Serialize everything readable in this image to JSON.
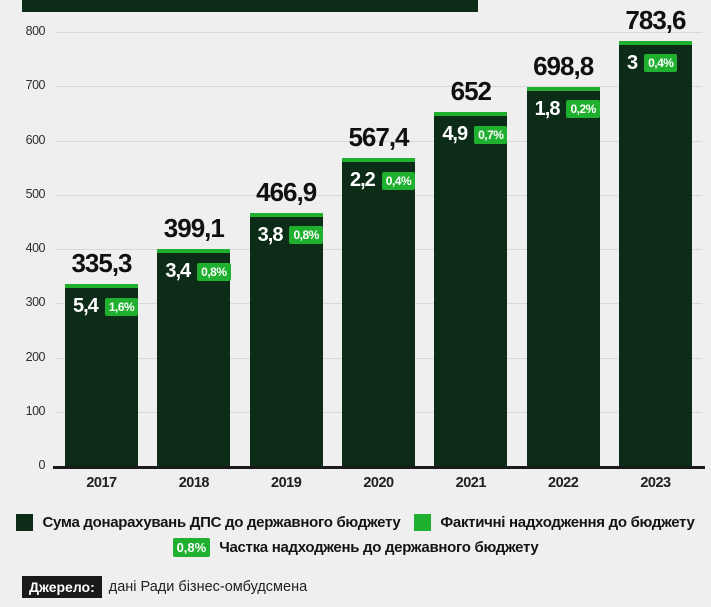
{
  "colors": {
    "background": "#efeff0",
    "dark_green": "#0c2c18",
    "bright_green": "#1eb02e",
    "gridline": "#d8d8d8",
    "axis": "#1a1a1a",
    "badge_text": "#ffffff",
    "source_badge_bg": "#191919"
  },
  "chart_data": {
    "type": "bar",
    "categories": [
      "2017",
      "2018",
      "2019",
      "2020",
      "2021",
      "2022",
      "2023"
    ],
    "series": [
      {
        "name": "Сума донарахувань ДПС до державного бюджету",
        "color": "#0c2c18",
        "values": [
          335.3,
          399.1,
          466.9,
          567.4,
          652,
          698.8,
          783.6
        ]
      },
      {
        "name": "Фактичні надходження до бюджету",
        "color": "#1eb02e",
        "values": [
          5.4,
          3.4,
          3.8,
          2.2,
          4.9,
          1.8,
          3
        ]
      },
      {
        "name": "Частка надходжень до державного бюджету",
        "unit": "%",
        "values": [
          1.6,
          0.8,
          0.8,
          0.4,
          0.7,
          0.2,
          0.4
        ]
      }
    ],
    "bar_labels": {
      "totals": [
        "335,3",
        "399,1",
        "466,9",
        "567,4",
        "652",
        "698,8",
        "783,6"
      ],
      "inflows": [
        "5,4",
        "3,4",
        "3,8",
        "2,2",
        "4,9",
        "1,8",
        "3"
      ],
      "shares": [
        "1,6%",
        "0,8%",
        "0,8%",
        "0,4%",
        "0,7%",
        "0,2%",
        "0,4%"
      ]
    },
    "ylim": [
      0,
      800
    ],
    "yticks": [
      0,
      100,
      200,
      300,
      400,
      500,
      600,
      700,
      800
    ],
    "grid": true,
    "legend_position": "bottom"
  },
  "legend": {
    "items": [
      {
        "swatch": "dark-green-square",
        "label": "Сума донарахувань ДПС до державного бюджету"
      },
      {
        "swatch": "bright-green-square",
        "label": "Фактичні надходження до бюджету"
      },
      {
        "swatch": "percent-badge",
        "badge_text": "0,8%",
        "label": "Частка надходжень до державного бюджету"
      }
    ]
  },
  "source": {
    "label": "Джерело:",
    "text": "дані Ради бізнес-омбудсмена"
  }
}
